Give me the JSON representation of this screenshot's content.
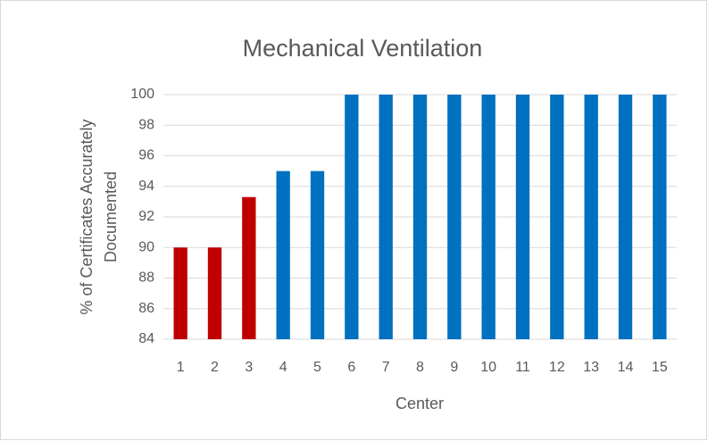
{
  "chart_data": {
    "type": "bar",
    "title": "Mechanical Ventilation",
    "xlabel": "Center",
    "ylabel": [
      "% of Certificates Accurately",
      "Documented"
    ],
    "categories": [
      "1",
      "2",
      "3",
      "4",
      "5",
      "6",
      "7",
      "8",
      "9",
      "10",
      "11",
      "12",
      "13",
      "14",
      "15"
    ],
    "values": [
      90,
      90,
      93.3,
      95,
      95,
      100,
      100,
      100,
      100,
      100,
      100,
      100,
      100,
      100,
      100
    ],
    "colors": [
      "#c00000",
      "#c00000",
      "#c00000",
      "#0070c0",
      "#0070c0",
      "#0070c0",
      "#0070c0",
      "#0070c0",
      "#0070c0",
      "#0070c0",
      "#0070c0",
      "#0070c0",
      "#0070c0",
      "#0070c0",
      "#0070c0"
    ],
    "ylim": [
      84,
      100
    ],
    "yticks": [
      84,
      86,
      88,
      90,
      92,
      94,
      96,
      98,
      100
    ],
    "grid": true
  }
}
